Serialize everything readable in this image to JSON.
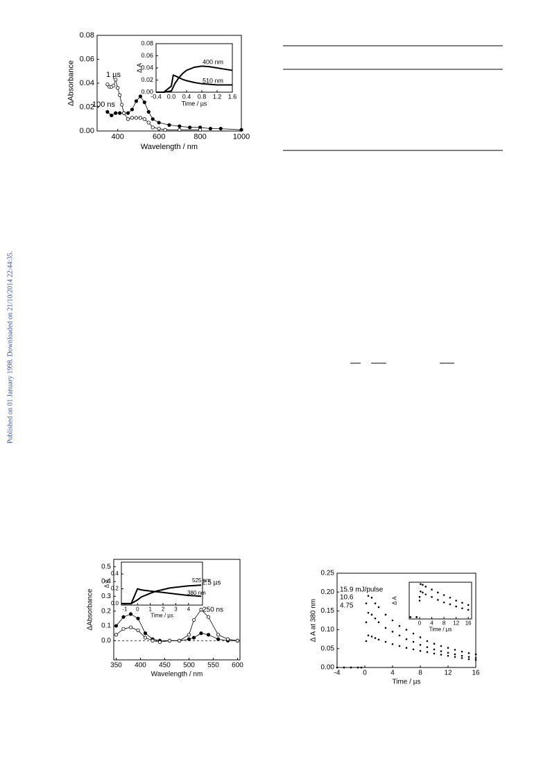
{
  "side_note": "Published on 01 January 1998. Downloaded on 21/10/2014 22:44:35.",
  "chart_data": [
    {
      "type": "line",
      "x_label": "Wavelength / nm",
      "y_label": "ΔAbsorbance",
      "xlim": [
        300,
        1000
      ],
      "xticks": [
        400,
        600,
        800,
        1000
      ],
      "ylim": [
        0,
        0.08
      ],
      "yticks": [
        {
          "value": 0,
          "label": "0.00"
        },
        {
          "value": 0.02,
          "label": "0.02"
        },
        {
          "value": 0.04,
          "label": "0.04"
        },
        {
          "value": 0.06,
          "label": "0.06"
        },
        {
          "value": 0.08,
          "label": "0.08"
        }
      ],
      "series": [
        {
          "name": "100 ns",
          "marker": "filled",
          "color": "#000000",
          "x": [
            350,
            370,
            390,
            410,
            430,
            450,
            470,
            490,
            510,
            530,
            550,
            570,
            600,
            650,
            700,
            750,
            800,
            850,
            900,
            1000
          ],
          "values": [
            0.016,
            0.013,
            0.015,
            0.015,
            0.015,
            0.015,
            0.018,
            0.025,
            0.029,
            0.024,
            0.016,
            0.01,
            0.007,
            0.005,
            0.004,
            0.003,
            0.003,
            0.002,
            0.002,
            0.001
          ]
        },
        {
          "name": "1 µs",
          "marker": "open",
          "color": "#000000",
          "x": [
            350,
            360,
            370,
            380,
            390,
            400,
            410,
            420,
            430,
            450,
            470,
            490,
            510,
            530,
            550,
            570,
            600,
            630,
            700,
            800
          ],
          "values": [
            0.039,
            0.037,
            0.037,
            0.038,
            0.043,
            0.036,
            0.03,
            0.022,
            0.015,
            0.01,
            0.011,
            0.011,
            0.011,
            0.01,
            0.007,
            0.003,
            0.002,
            0.001,
            0.001,
            0.001
          ]
        }
      ],
      "inset": {
        "type": "line",
        "x_label": "Time / µs",
        "y_label": "Δ A",
        "xlim": [
          -0.4,
          1.6
        ],
        "xticks": [
          -0.4,
          {
            "value": 0,
            "label": "0.0"
          },
          0.4,
          0.8,
          1.2,
          1.6
        ],
        "ylim": [
          0,
          0.08
        ],
        "yticks": [
          {
            "value": 0,
            "label": "0.00"
          },
          {
            "value": 0.02,
            "label": "0.02"
          },
          {
            "value": 0.04,
            "label": "0.04"
          },
          {
            "value": 0.06,
            "label": "0.06"
          },
          {
            "value": 0.08,
            "label": "0.08"
          }
        ],
        "series": [
          {
            "name": "400 nm",
            "marker": "none",
            "color": "#000000",
            "x": [
              -0.4,
              -0.2,
              0,
              0.1,
              0.2,
              0.3,
              0.4,
              0.6,
              0.8,
              1.0,
              1.2,
              1.4,
              1.6
            ],
            "values": [
              0,
              0,
              0.002,
              0.015,
              0.024,
              0.031,
              0.036,
              0.041,
              0.043,
              0.042,
              0.04,
              0.038,
              0.036
            ]
          },
          {
            "name": "510 nm",
            "marker": "none",
            "color": "#000000",
            "x": [
              -0.4,
              -0.2,
              0,
              0.05,
              0.1,
              0.2,
              0.3,
              0.4,
              0.6,
              0.8,
              1.0,
              1.2,
              1.6
            ],
            "values": [
              0,
              0,
              0.01,
              0.028,
              0.027,
              0.024,
              0.021,
              0.019,
              0.016,
              0.014,
              0.013,
              0.012,
              0.012
            ]
          }
        ]
      }
    },
    {
      "type": "line",
      "x_label": "Wavelength / nm",
      "y_label": "ΔAbsorbance",
      "xlim": [
        345,
        605
      ],
      "xticks": [
        350,
        400,
        450,
        500,
        550,
        600
      ],
      "ylim": [
        -0.13,
        0.55
      ],
      "yticks": [
        {
          "value": 0,
          "label": "0.0"
        },
        0.1,
        0.2,
        0.3,
        0.4,
        0.5
      ],
      "zero_line": true,
      "series": [
        {
          "name": "250 ns",
          "marker": "filled",
          "color": "#000000",
          "x": [
            350,
            365,
            380,
            395,
            410,
            425,
            440,
            460,
            480,
            500,
            510,
            525,
            540,
            560,
            580,
            600
          ],
          "values": [
            0.1,
            0.16,
            0.18,
            0.15,
            0.05,
            0.01,
            0,
            0,
            0,
            0.01,
            0.02,
            0.05,
            0.04,
            0.01,
            0,
            0
          ]
        },
        {
          "name": "2.5 µs",
          "marker": "open",
          "color": "#000000",
          "x": [
            350,
            365,
            380,
            395,
            410,
            425,
            440,
            460,
            480,
            500,
            510,
            525,
            540,
            560,
            580,
            600
          ],
          "values": [
            0.04,
            0.08,
            0.09,
            0.07,
            0.02,
            0,
            -0.01,
            0,
            0,
            0.04,
            0.14,
            0.21,
            0.16,
            0.04,
            0.01,
            0
          ]
        }
      ],
      "inset": {
        "type": "line",
        "x_label": "Time / µs",
        "y_label": "Δ A",
        "xlim": [
          -1.27,
          5.1
        ],
        "xticks": [
          -1,
          0,
          1,
          2,
          3,
          4
        ],
        "ylim": [
          -0.02,
          0.56
        ],
        "yticks": [
          {
            "value": 0,
            "label": "0.0"
          },
          0.2,
          0.4
        ],
        "series": [
          {
            "name": "525 nm",
            "marker": "none",
            "color": "#000000",
            "x": [
              -1.27,
              -0.5,
              0,
              0.3,
              0.6,
              1,
              1.5,
              2,
              2.5,
              3,
              3.5,
              4,
              4.5,
              5
            ],
            "values": [
              0,
              0,
              0.05,
              0.09,
              0.11,
              0.14,
              0.17,
              0.19,
              0.21,
              0.22,
              0.23,
              0.24,
              0.245,
              0.25
            ]
          },
          {
            "name": "380 nm",
            "marker": "none",
            "color": "#000000",
            "x": [
              -1.27,
              -0.5,
              0,
              0.2,
              0.5,
              1,
              1.5,
              2,
              2.5,
              3,
              3.5,
              4,
              4.5,
              5
            ],
            "values": [
              0,
              0,
              0.2,
              0.19,
              0.18,
              0.17,
              0.16,
              0.15,
              0.14,
              0.13,
              0.12,
              0.11,
              0.105,
              0.1
            ]
          }
        ]
      }
    },
    {
      "type": "line",
      "x_label": "Time / µs",
      "y_label": "Δ A at 380 nm",
      "xlim": [
        -4,
        16
      ],
      "xticks": [
        -4,
        0,
        4,
        8,
        12,
        16
      ],
      "ylim": [
        0,
        0.25
      ],
      "yticks": [
        {
          "value": 0,
          "label": "0.00"
        },
        {
          "value": 0.05,
          "label": "0.05"
        },
        {
          "value": 0.1,
          "label": "0.10"
        },
        {
          "value": 0.15,
          "label": "0.15"
        },
        {
          "value": 0.2,
          "label": "0.20"
        },
        {
          "value": 0.25,
          "label": "0.25"
        }
      ],
      "series": [
        {
          "name": "15.9 mJ/pulse",
          "marker": "dot",
          "color": "#000000",
          "x": [
            -4,
            -3,
            -2,
            -1,
            -0.5,
            0.2,
            0.5,
            1,
            1.5,
            2,
            3,
            4,
            5,
            6,
            7,
            8,
            9,
            10,
            11,
            12,
            13,
            14,
            15,
            16
          ],
          "values": [
            0,
            0,
            0,
            0,
            0,
            0.17,
            0.19,
            0.185,
            0.17,
            0.16,
            0.14,
            0.125,
            0.11,
            0.1,
            0.09,
            0.08,
            0.07,
            0.063,
            0.057,
            0.052,
            0.047,
            0.042,
            0.038,
            0.035
          ]
        },
        {
          "name": "10.6",
          "marker": "dot",
          "color": "#000000",
          "x": [
            -4,
            -3,
            -2,
            -1,
            -0.5,
            0.2,
            0.5,
            1,
            1.5,
            2,
            3,
            4,
            5,
            6,
            7,
            8,
            9,
            10,
            11,
            12,
            13,
            14,
            15,
            16
          ],
          "values": [
            0,
            0,
            0,
            0,
            0,
            0.12,
            0.145,
            0.14,
            0.13,
            0.12,
            0.105,
            0.095,
            0.085,
            0.075,
            0.068,
            0.06,
            0.054,
            0.048,
            0.043,
            0.039,
            0.035,
            0.031,
            0.028,
            0.025
          ]
        },
        {
          "name": "4.75",
          "marker": "dot",
          "color": "#000000",
          "x": [
            -4,
            -3,
            -2,
            -1,
            -0.5,
            0.2,
            0.5,
            1,
            1.5,
            2,
            3,
            4,
            5,
            6,
            7,
            8,
            9,
            10,
            11,
            12,
            13,
            14,
            15,
            16
          ],
          "values": [
            0,
            0,
            0,
            0,
            0,
            0.07,
            0.085,
            0.082,
            0.078,
            0.074,
            0.068,
            0.062,
            0.057,
            0.052,
            0.048,
            0.044,
            0.041,
            0.037,
            0.034,
            0.031,
            0.028,
            0.025,
            0.022,
            0.02
          ]
        }
      ],
      "inset": {
        "type": "line",
        "x_label": "Time / µs",
        "y_label": "Δ A",
        "xlim": [
          -3.43,
          17.1
        ],
        "xticks": [
          0,
          4,
          8,
          12,
          16
        ],
        "ylim": [
          0,
          1
        ],
        "series": [
          {
            "marker": "dot",
            "color": "#000000",
            "x": [
              -3,
              -1,
              0,
              0.3,
              1,
              2,
              4,
              6,
              8,
              10,
              12,
              14,
              16
            ],
            "values": [
              0.05,
              0.05,
              0.6,
              0.95,
              0.93,
              0.88,
              0.8,
              0.72,
              0.65,
              0.58,
              0.5,
              0.44,
              0.38
            ]
          },
          {
            "marker": "dot",
            "color": "#000000",
            "x": [
              -3,
              -1,
              0,
              0.3,
              1,
              2,
              4,
              6,
              8,
              10,
              12,
              14,
              16
            ],
            "values": [
              0.05,
              0.05,
              0.5,
              0.75,
              0.72,
              0.67,
              0.6,
              0.52,
              0.45,
              0.4,
              0.34,
              0.29,
              0.25
            ]
          }
        ]
      }
    }
  ]
}
